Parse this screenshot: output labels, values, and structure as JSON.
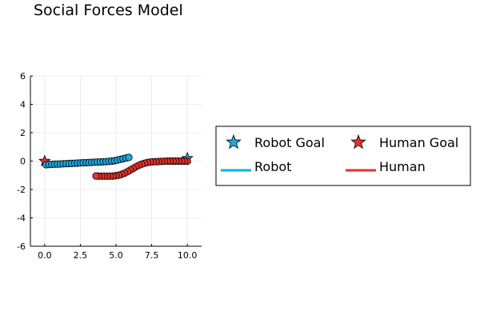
{
  "chart_data": {
    "type": "scatter",
    "title": "Social Forces Model",
    "xlabel": "",
    "ylabel": "",
    "xlim": [
      -1,
      11
    ],
    "ylim": [
      -6,
      6
    ],
    "xticks": [
      0.0,
      2.5,
      5.0,
      7.5,
      10.0
    ],
    "xtick_labels": [
      "0.0",
      "2.5",
      "5.0",
      "7.5",
      "10.0"
    ],
    "yticks": [
      -6,
      -4,
      -2,
      0,
      2,
      4,
      6
    ],
    "ytick_labels": [
      "-6",
      "-4",
      "-2",
      "0",
      "2",
      "4",
      "6"
    ],
    "grid": true,
    "legend_position": "outer right",
    "colors": {
      "robot": "#1fa9e1",
      "human": "#e8322a",
      "robot_line": "#00b3f0",
      "human_line": "#e8322a"
    },
    "series": [
      {
        "name": "Robot Goal",
        "kind": "star",
        "color": "#1fa9e1",
        "points": [
          [
            10.0,
            0.2
          ]
        ]
      },
      {
        "name": "Human Goal",
        "kind": "star",
        "color": "#e8322a",
        "points": [
          [
            0.0,
            0.0
          ]
        ]
      },
      {
        "name": "Robot",
        "kind": "trajectory",
        "color": "#1fa9e1",
        "x": [
          0.1,
          0.3,
          0.5,
          0.7,
          0.9,
          1.1,
          1.3,
          1.5,
          1.7,
          1.9,
          2.1,
          2.3,
          2.5,
          2.7,
          2.9,
          3.1,
          3.3,
          3.5,
          3.7,
          3.9,
          4.1,
          4.3,
          4.5,
          4.7,
          4.9,
          5.1,
          5.3,
          5.5,
          5.7,
          5.9
        ],
        "y": [
          -0.25,
          -0.24,
          -0.23,
          -0.22,
          -0.21,
          -0.2,
          -0.19,
          -0.18,
          -0.17,
          -0.16,
          -0.15,
          -0.14,
          -0.13,
          -0.12,
          -0.11,
          -0.1,
          -0.09,
          -0.08,
          -0.07,
          -0.06,
          -0.05,
          -0.04,
          -0.02,
          0.0,
          0.03,
          0.07,
          0.12,
          0.17,
          0.22,
          0.26
        ]
      },
      {
        "name": "Human",
        "kind": "trajectory",
        "color": "#e8322a",
        "x": [
          10.0,
          9.8,
          9.6,
          9.4,
          9.2,
          9.0,
          8.8,
          8.6,
          8.4,
          8.2,
          8.0,
          7.8,
          7.6,
          7.4,
          7.2,
          7.0,
          6.8,
          6.6,
          6.4,
          6.2,
          6.0,
          5.8,
          5.6,
          5.4,
          5.2,
          5.0,
          4.8,
          4.6,
          4.4,
          4.2,
          4.0,
          3.8,
          3.6
        ],
        "y": [
          0.0,
          0.0,
          0.0,
          0.0,
          0.0,
          0.0,
          0.0,
          0.0,
          -0.01,
          -0.02,
          -0.03,
          -0.04,
          -0.05,
          -0.07,
          -0.1,
          -0.15,
          -0.22,
          -0.3,
          -0.4,
          -0.52,
          -0.63,
          -0.75,
          -0.85,
          -0.93,
          -0.99,
          -1.03,
          -1.05,
          -1.06,
          -1.06,
          -1.06,
          -1.06,
          -1.06,
          -1.05
        ]
      }
    ],
    "legend": [
      {
        "label": "Robot Goal",
        "symbol": "star",
        "color": "#1fa9e1"
      },
      {
        "label": "Human Goal",
        "symbol": "star",
        "color": "#e8322a"
      },
      {
        "label": "Robot",
        "symbol": "line",
        "color": "#00b3f0"
      },
      {
        "label": "Human",
        "symbol": "line",
        "color": "#e8322a"
      }
    ]
  }
}
